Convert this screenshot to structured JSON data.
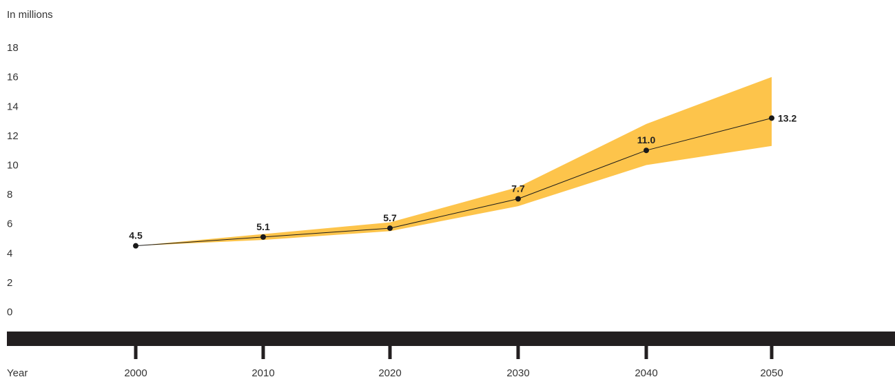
{
  "chart_data": {
    "type": "line",
    "unit_label": "In millions",
    "xlabel": "Year",
    "ylabel": "",
    "title": "",
    "x": [
      2000,
      2010,
      2020,
      2030,
      2040,
      2050
    ],
    "yticks": [
      0,
      2,
      4,
      6,
      8,
      10,
      12,
      14,
      16,
      18
    ],
    "ylim": [
      0,
      18
    ],
    "series": [
      {
        "values": [
          4.5,
          5.1,
          5.7,
          7.7,
          11.0,
          13.2
        ]
      }
    ],
    "data_labels": [
      "4.5",
      "5.1",
      "5.7",
      "7.7",
      "11.0",
      "13.2"
    ],
    "uncertainty_band": {
      "lower": [
        4.5,
        4.9,
        5.5,
        7.2,
        10.0,
        11.3
      ],
      "upper": [
        4.5,
        5.3,
        6.1,
        8.5,
        12.8,
        16.0
      ]
    },
    "colors": {
      "band": "#fdc44b",
      "line": "#1a1a1a",
      "axis_bar": "#231f20"
    },
    "grid": false,
    "legend": "none"
  }
}
